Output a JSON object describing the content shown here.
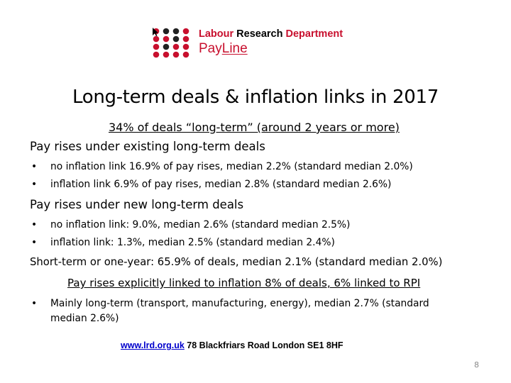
{
  "logo": {
    "org_part1": "Labour ",
    "org_part2": "Research",
    "org_part3": " Department",
    "product_prefix": "Pay",
    "product_suffix": "Line",
    "colors": {
      "red": "#c8102e",
      "dot_dark": "#222222"
    }
  },
  "slide": {
    "title": "Long-term deals & inflation links in 2017",
    "subtitle": "34% of deals “long-term” (around 2 years or more)",
    "sections": [
      {
        "heading": "Pay rises under existing long-term deals",
        "bullets": [
          "no inflation link 16.9% of pay rises, median 2.2% (standard median 2.0%)",
          "inflation link 6.9% of pay rises, median 2.8% (standard median 2.6%)"
        ]
      },
      {
        "heading": "Pay rises under new long-term deals",
        "bullets": [
          "no inflation link: 9.0%, median 2.6% (standard median 2.5%)",
          "inflation link: 1.3%, median 2.5% (standard median 2.4%)"
        ]
      }
    ],
    "short_term": "Short-term or one-year: 65.9% of deals, median 2.1% (standard median 2.0%)",
    "linked_heading": "Pay rises explicitly linked to inflation 8% of deals, 6% linked to RPI",
    "linked_bullet_line1": "Mainly long-term (transport, manufacturing, energy), median 2.7% (standard",
    "linked_bullet_line2": "median 2.6%)",
    "bullet_char": "•"
  },
  "footer": {
    "url": "www.lrd.org.uk",
    "address": " 78 Blackfriars Road London SE1 8HF"
  },
  "page_number": "8"
}
